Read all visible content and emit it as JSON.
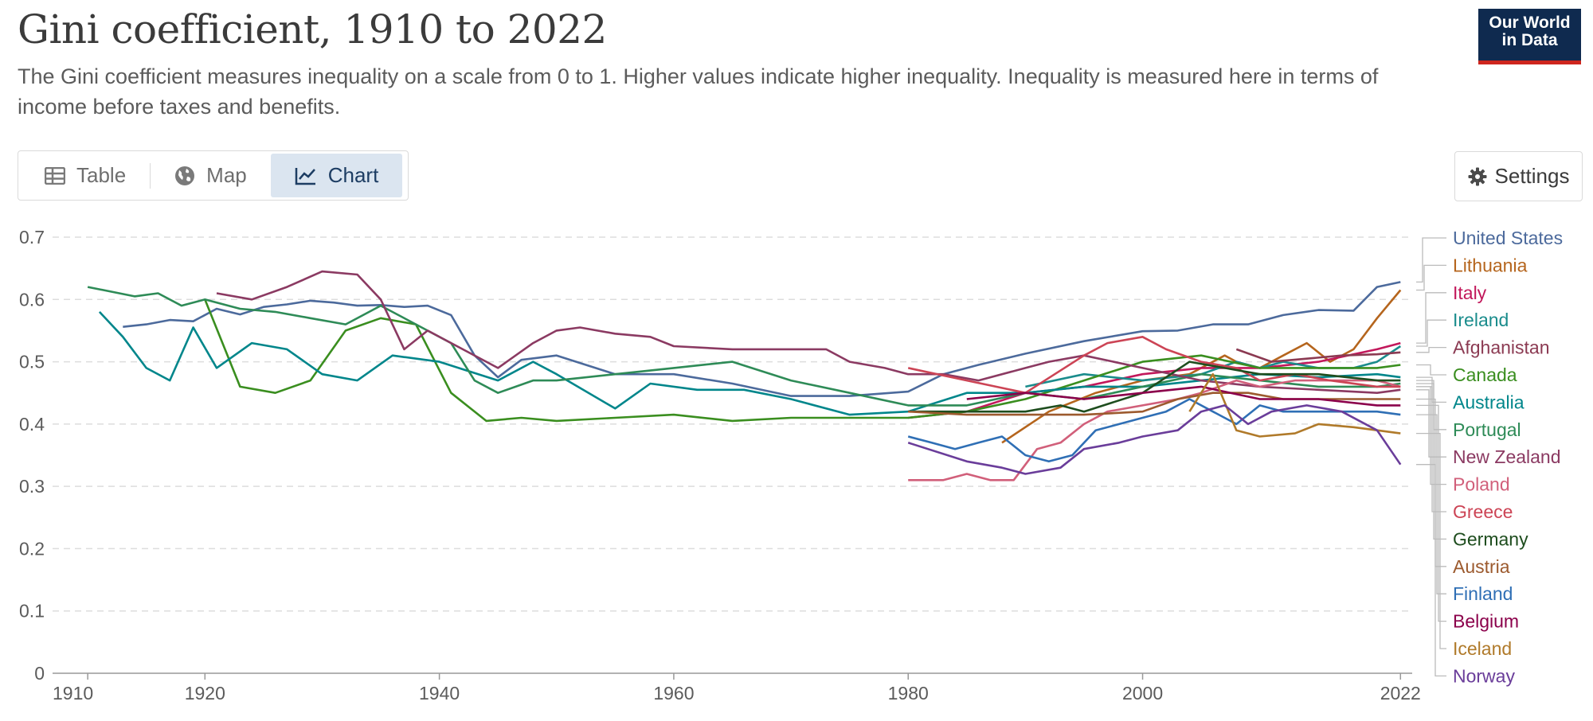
{
  "header": {
    "title": "Gini coefficient, 1910 to 2022",
    "subtitle": "The Gini coefficient measures inequality on a scale from 0 to 1. Higher values indicate higher inequality. Inequality is measured here in terms of income before taxes and benefits.",
    "logo_line1": "Our World",
    "logo_line2": "in Data"
  },
  "tabs": [
    {
      "label": "Table",
      "icon": "table-icon",
      "active": false
    },
    {
      "label": "Map",
      "icon": "globe-icon",
      "active": false
    },
    {
      "label": "Chart",
      "icon": "line-chart-icon",
      "active": true
    }
  ],
  "settings_label": "Settings",
  "chart_data": {
    "type": "line",
    "xlim": [
      1907,
      2023
    ],
    "ylim": [
      0,
      0.7
    ],
    "x_ticks": [
      1910,
      1920,
      1940,
      1960,
      1980,
      2000,
      2022
    ],
    "y_ticks": [
      0,
      0.1,
      0.2,
      0.3,
      0.4,
      0.5,
      0.6,
      0.7
    ],
    "y_tick_labels": [
      "0",
      "0.1",
      "0.2",
      "0.3",
      "0.4",
      "0.5",
      "0.6",
      "0.7"
    ],
    "grid": "horizontal-dashed",
    "legend": "right",
    "series": [
      {
        "name": "United States",
        "color": "#4c6a9c",
        "x": [
          1913,
          1915,
          1917,
          1919,
          1921,
          1923,
          1925,
          1927,
          1929,
          1931,
          1933,
          1935,
          1937,
          1939,
          1941,
          1943,
          1945,
          1947,
          1950,
          1955,
          1960,
          1965,
          1970,
          1975,
          1980,
          1983,
          1986,
          1990,
          1995,
          2000,
          2003,
          2006,
          2009,
          2012,
          2015,
          2018,
          2020,
          2022
        ],
        "y": [
          0.556,
          0.56,
          0.567,
          0.565,
          0.585,
          0.576,
          0.588,
          0.592,
          0.598,
          0.595,
          0.59,
          0.591,
          0.588,
          0.59,
          0.575,
          0.51,
          0.475,
          0.503,
          0.51,
          0.48,
          0.48,
          0.465,
          0.445,
          0.445,
          0.452,
          0.48,
          0.495,
          0.513,
          0.533,
          0.549,
          0.55,
          0.56,
          0.56,
          0.575,
          0.583,
          0.582,
          0.62,
          0.628
        ]
      },
      {
        "name": "Lithuania",
        "color": "#b5651d",
        "x": [
          1988,
          1992,
          1996,
          2000,
          2004,
          2007,
          2008,
          2010,
          2012,
          2014,
          2016,
          2018,
          2020,
          2022
        ],
        "y": [
          0.37,
          0.42,
          0.45,
          0.47,
          0.48,
          0.51,
          0.5,
          0.49,
          0.51,
          0.53,
          0.5,
          0.52,
          0.57,
          0.615
        ]
      },
      {
        "name": "Italy",
        "color": "#c2185b",
        "x": [
          1980,
          1985,
          1990,
          1995,
          2000,
          2005,
          2010,
          2015,
          2020,
          2022
        ],
        "y": [
          0.41,
          0.42,
          0.45,
          0.46,
          0.48,
          0.49,
          0.49,
          0.5,
          0.52,
          0.53
        ]
      },
      {
        "name": "Ireland",
        "color": "#1a8c8c",
        "x": [
          1990,
          1995,
          2000,
          2005,
          2008,
          2010,
          2012,
          2015,
          2018,
          2020,
          2022
        ],
        "y": [
          0.46,
          0.48,
          0.47,
          0.48,
          0.5,
          0.49,
          0.5,
          0.49,
          0.49,
          0.5,
          0.525
        ]
      },
      {
        "name": "Afghanistan",
        "color": "#8b3a52",
        "x": [
          2008,
          2011,
          2014,
          2017,
          2020,
          2022
        ],
        "y": [
          0.52,
          0.5,
          0.505,
          0.51,
          0.512,
          0.515
        ]
      },
      {
        "name": "Canada",
        "color": "#3a8e1f",
        "x": [
          1920,
          1923,
          1926,
          1929,
          1932,
          1935,
          1938,
          1941,
          1944,
          1947,
          1950,
          1955,
          1960,
          1965,
          1970,
          1975,
          1980,
          1985,
          1990,
          1995,
          2000,
          2005,
          2010,
          2015,
          2020,
          2022
        ],
        "y": [
          0.6,
          0.46,
          0.45,
          0.47,
          0.55,
          0.57,
          0.56,
          0.45,
          0.405,
          0.41,
          0.405,
          0.41,
          0.415,
          0.405,
          0.41,
          0.41,
          0.41,
          0.42,
          0.44,
          0.47,
          0.5,
          0.51,
          0.49,
          0.49,
          0.49,
          0.495
        ]
      },
      {
        "name": "Australia",
        "color": "#00868b",
        "x": [
          1911,
          1913,
          1915,
          1917,
          1919,
          1921,
          1924,
          1927,
          1930,
          1933,
          1936,
          1940,
          1945,
          1948,
          1950,
          1955,
          1958,
          1962,
          1966,
          1970,
          1975,
          1980,
          1985,
          1990,
          1995,
          2000,
          2005,
          2010,
          2015,
          2020,
          2022
        ],
        "y": [
          0.58,
          0.54,
          0.49,
          0.47,
          0.555,
          0.49,
          0.53,
          0.52,
          0.48,
          0.47,
          0.51,
          0.5,
          0.47,
          0.5,
          0.48,
          0.425,
          0.465,
          0.455,
          0.455,
          0.44,
          0.415,
          0.42,
          0.45,
          0.45,
          0.46,
          0.46,
          0.47,
          0.48,
          0.475,
          0.48,
          0.475
        ]
      },
      {
        "name": "Portugal",
        "color": "#2e8b57",
        "x": [
          1910,
          1914,
          1916,
          1918,
          1920,
          1923,
          1926,
          1929,
          1932,
          1935,
          1938,
          1941,
          1943,
          1945,
          1948,
          1950,
          1955,
          1960,
          1965,
          1970,
          1975,
          1980,
          1985,
          1990,
          1995,
          2000,
          2005,
          2010,
          2015,
          2020,
          2022
        ],
        "y": [
          0.62,
          0.605,
          0.61,
          0.59,
          0.6,
          0.585,
          0.58,
          0.57,
          0.56,
          0.59,
          0.56,
          0.53,
          0.47,
          0.45,
          0.47,
          0.47,
          0.48,
          0.49,
          0.5,
          0.47,
          0.45,
          0.43,
          0.43,
          0.45,
          0.44,
          0.46,
          0.48,
          0.47,
          0.46,
          0.46,
          0.465
        ]
      },
      {
        "name": "New Zealand",
        "color": "#8b3a62",
        "x": [
          1921,
          1924,
          1927,
          1930,
          1933,
          1935,
          1937,
          1939,
          1942,
          1945,
          1948,
          1950,
          1952,
          1955,
          1958,
          1960,
          1965,
          1970,
          1973,
          1975,
          1978,
          1980,
          1983,
          1986,
          1990,
          1992,
          1995,
          2000,
          2005,
          2010,
          2015,
          2020,
          2022
        ],
        "y": [
          0.61,
          0.6,
          0.62,
          0.645,
          0.64,
          0.6,
          0.52,
          0.55,
          0.52,
          0.49,
          0.53,
          0.55,
          0.555,
          0.545,
          0.54,
          0.525,
          0.52,
          0.52,
          0.52,
          0.5,
          0.49,
          0.48,
          0.48,
          0.47,
          0.49,
          0.5,
          0.51,
          0.49,
          0.47,
          0.46,
          0.455,
          0.45,
          0.455
        ]
      },
      {
        "name": "Poland",
        "color": "#d15f7a",
        "x": [
          1980,
          1983,
          1985,
          1987,
          1989,
          1991,
          1993,
          1995,
          1997,
          2000,
          2003,
          2005,
          2008,
          2010,
          2013,
          2016,
          2020,
          2022
        ],
        "y": [
          0.31,
          0.31,
          0.32,
          0.31,
          0.31,
          0.36,
          0.37,
          0.4,
          0.42,
          0.43,
          0.44,
          0.45,
          0.47,
          0.46,
          0.47,
          0.47,
          0.47,
          0.46
        ]
      },
      {
        "name": "Greece",
        "color": "#cc4455",
        "x": [
          1980,
          1985,
          1990,
          1995,
          1997,
          2000,
          2002,
          2005,
          2008,
          2010,
          2013,
          2016,
          2020,
          2022
        ],
        "y": [
          0.49,
          0.47,
          0.45,
          0.51,
          0.53,
          0.54,
          0.52,
          0.5,
          0.49,
          0.47,
          0.48,
          0.47,
          0.46,
          0.46
        ]
      },
      {
        "name": "Germany",
        "color": "#1e4d1e",
        "x": [
          1980,
          1985,
          1990,
          1993,
          1995,
          2000,
          2004,
          2007,
          2010,
          2015,
          2020,
          2022
        ],
        "y": [
          0.42,
          0.42,
          0.42,
          0.43,
          0.42,
          0.45,
          0.5,
          0.49,
          0.48,
          0.48,
          0.47,
          0.47
        ]
      },
      {
        "name": "Austria",
        "color": "#9c5a2e",
        "x": [
          1980,
          1985,
          1990,
          1995,
          2000,
          2003,
          2006,
          2009,
          2012,
          2015,
          2020,
          2022
        ],
        "y": [
          0.42,
          0.415,
          0.415,
          0.415,
          0.42,
          0.44,
          0.45,
          0.45,
          0.44,
          0.44,
          0.44,
          0.44
        ]
      },
      {
        "name": "Finland",
        "color": "#2f6fb5",
        "x": [
          1980,
          1982,
          1984,
          1986,
          1988,
          1990,
          1992,
          1994,
          1996,
          1998,
          2000,
          2002,
          2004,
          2006,
          2008,
          2010,
          2012,
          2015,
          2020,
          2022
        ],
        "y": [
          0.38,
          0.37,
          0.36,
          0.37,
          0.38,
          0.35,
          0.34,
          0.35,
          0.39,
          0.4,
          0.41,
          0.42,
          0.44,
          0.42,
          0.4,
          0.43,
          0.42,
          0.42,
          0.42,
          0.415
        ]
      },
      {
        "name": "Belgium",
        "color": "#8b004b",
        "x": [
          1985,
          1990,
          1995,
          2000,
          2005,
          2010,
          2015,
          2020,
          2022
        ],
        "y": [
          0.44,
          0.45,
          0.44,
          0.45,
          0.46,
          0.44,
          0.44,
          0.43,
          0.43
        ]
      },
      {
        "name": "Iceland",
        "color": "#b07a2a",
        "x": [
          2004,
          2006,
          2008,
          2010,
          2013,
          2015,
          2018,
          2020,
          2022
        ],
        "y": [
          0.42,
          0.48,
          0.39,
          0.38,
          0.385,
          0.4,
          0.395,
          0.39,
          0.385
        ]
      },
      {
        "name": "Norway",
        "color": "#6a3d9a",
        "x": [
          1980,
          1985,
          1988,
          1990,
          1993,
          1995,
          1998,
          2000,
          2003,
          2005,
          2007,
          2009,
          2011,
          2014,
          2017,
          2020,
          2022
        ],
        "y": [
          0.37,
          0.34,
          0.33,
          0.32,
          0.33,
          0.36,
          0.37,
          0.38,
          0.39,
          0.42,
          0.43,
          0.4,
          0.42,
          0.43,
          0.42,
          0.39,
          0.335
        ]
      }
    ]
  }
}
